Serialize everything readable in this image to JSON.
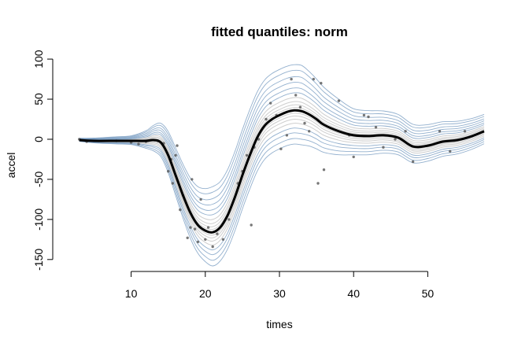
{
  "chart_data": {
    "type": "line",
    "title": "fitted quantiles: norm",
    "xlabel": "times",
    "ylabel": "accel",
    "xlim": [
      2.4,
      57.6
    ],
    "ylim": [
      -160,
      105
    ],
    "xticks": [
      10,
      20,
      30,
      40,
      50
    ],
    "yticks": [
      -150,
      -100,
      -50,
      0,
      50,
      100
    ],
    "grid": false,
    "colors": {
      "median": "#000000",
      "outer_quantiles": "#6f95bd",
      "inner_quantiles": "#c9c9c9",
      "points": "#555555"
    },
    "x": [
      3,
      5,
      8,
      10,
      12,
      13,
      14,
      15,
      16,
      17,
      18,
      19,
      20,
      21,
      22,
      23,
      24,
      25,
      26,
      27,
      28,
      29,
      30,
      31,
      32,
      33,
      34,
      35,
      36,
      38,
      40,
      42,
      44,
      46,
      48,
      50,
      52,
      54,
      56,
      57.6
    ],
    "median": [
      -1,
      -2,
      -2,
      -2,
      -2,
      -1,
      -4,
      -20,
      -45,
      -70,
      -92,
      -107,
      -114,
      -116,
      -110,
      -95,
      -72,
      -45,
      -20,
      2,
      17,
      25,
      30,
      34,
      36,
      35,
      31,
      25,
      18,
      10,
      5,
      4,
      5,
      2,
      -9,
      -8,
      -3,
      -1,
      4,
      10
    ],
    "quantile_offsets": [
      -42,
      -35,
      -28,
      -22,
      -16,
      -11,
      -7,
      -3.5,
      3.5,
      7,
      11,
      16,
      22,
      28,
      35,
      42,
      50,
      57
    ],
    "points": [
      {
        "x": 3,
        "y": 0
      },
      {
        "x": 4,
        "y": -3
      },
      {
        "x": 8,
        "y": -2
      },
      {
        "x": 10,
        "y": -4
      },
      {
        "x": 11,
        "y": -6
      },
      {
        "x": 12,
        "y": -3
      },
      {
        "x": 13.6,
        "y": -2
      },
      {
        "x": 14.4,
        "y": -5
      },
      {
        "x": 15,
        "y": -40
      },
      {
        "x": 15.4,
        "y": -25
      },
      {
        "x": 15.6,
        "y": -55
      },
      {
        "x": 16,
        "y": -20
      },
      {
        "x": 16.2,
        "y": -8
      },
      {
        "x": 16.6,
        "y": -88
      },
      {
        "x": 17,
        "y": -70
      },
      {
        "x": 17.6,
        "y": -123
      },
      {
        "x": 18,
        "y": -110
      },
      {
        "x": 18.2,
        "y": -50
      },
      {
        "x": 18.6,
        "y": -112
      },
      {
        "x": 19,
        "y": -128
      },
      {
        "x": 19.4,
        "y": -75
      },
      {
        "x": 20,
        "y": -125
      },
      {
        "x": 20.4,
        "y": -110
      },
      {
        "x": 21,
        "y": -134
      },
      {
        "x": 21.6,
        "y": -118
      },
      {
        "x": 22.4,
        "y": -125
      },
      {
        "x": 23.2,
        "y": -100
      },
      {
        "x": 24.4,
        "y": -55
      },
      {
        "x": 25,
        "y": -40
      },
      {
        "x": 25.6,
        "y": -20
      },
      {
        "x": 26.2,
        "y": -107
      },
      {
        "x": 26.6,
        "y": -10
      },
      {
        "x": 27.2,
        "y": 0
      },
      {
        "x": 28.2,
        "y": 25
      },
      {
        "x": 28.8,
        "y": 45
      },
      {
        "x": 29.6,
        "y": 30
      },
      {
        "x": 30.2,
        "y": -12
      },
      {
        "x": 31,
        "y": 5
      },
      {
        "x": 31.6,
        "y": 75
      },
      {
        "x": 32.2,
        "y": 55
      },
      {
        "x": 32.8,
        "y": 40
      },
      {
        "x": 33.4,
        "y": 20
      },
      {
        "x": 34,
        "y": 10
      },
      {
        "x": 34.6,
        "y": 75
      },
      {
        "x": 35.2,
        "y": -55
      },
      {
        "x": 35.6,
        "y": 70
      },
      {
        "x": 36,
        "y": -38
      },
      {
        "x": 38,
        "y": 48
      },
      {
        "x": 39.4,
        "y": 5
      },
      {
        "x": 40,
        "y": -22
      },
      {
        "x": 41.4,
        "y": 30
      },
      {
        "x": 42,
        "y": 28
      },
      {
        "x": 43,
        "y": 15
      },
      {
        "x": 44,
        "y": -10
      },
      {
        "x": 45.6,
        "y": 0
      },
      {
        "x": 47,
        "y": 10
      },
      {
        "x": 48,
        "y": -28
      },
      {
        "x": 51.6,
        "y": 10
      },
      {
        "x": 53,
        "y": -15
      },
      {
        "x": 55,
        "y": 10
      }
    ]
  }
}
